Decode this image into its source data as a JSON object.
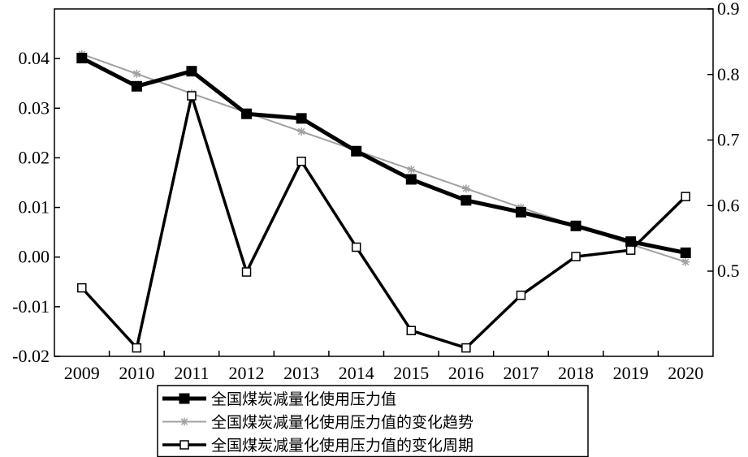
{
  "chart_data": {
    "type": "line",
    "categories": [
      "2009",
      "2010",
      "2011",
      "2012",
      "2013",
      "2014",
      "2015",
      "2016",
      "2017",
      "2018",
      "2019",
      "2020"
    ],
    "left_axis": {
      "min": -0.02,
      "max": 0.05,
      "ticks": [
        -0.02,
        -0.01,
        0.0,
        0.01,
        0.02,
        0.03,
        0.04
      ],
      "tick_labels": [
        "-0.02",
        "-0.01",
        "0.00",
        "0.01",
        "0.02",
        "0.03",
        "0.04"
      ]
    },
    "right_axis": {
      "min": 0.37,
      "max": 0.9,
      "ticks": [
        0.5,
        0.6,
        0.7,
        0.8,
        0.9
      ],
      "tick_labels": [
        "0.5",
        "0.6",
        "0.7",
        "0.8",
        "0.9"
      ]
    },
    "series": [
      {
        "name": "全国煤炭减量化使用压力值",
        "axis": "right",
        "marker": "filled-square",
        "color": "#000000",
        "values": [
          0.825,
          0.782,
          0.805,
          0.74,
          0.733,
          0.683,
          0.64,
          0.608,
          0.59,
          0.569,
          0.545,
          0.528
        ]
      },
      {
        "name": "全国煤炭减量化使用压力值的变化趋势",
        "axis": "right",
        "marker": "star",
        "color": "#a0a0a0",
        "values": [
          0.831,
          0.801,
          0.771,
          0.742,
          0.713,
          0.684,
          0.655,
          0.626,
          0.597,
          0.569,
          0.541,
          0.514
        ]
      },
      {
        "name": "全国煤炭减量化使用压力值的变化周期",
        "axis": "left",
        "marker": "hollow-square",
        "color": "#000000",
        "values": [
          -0.0062,
          -0.0183,
          0.0325,
          -0.003,
          0.0193,
          0.002,
          -0.0148,
          -0.0183,
          -0.0077,
          0.0001,
          0.0014,
          0.0122
        ]
      }
    ]
  }
}
